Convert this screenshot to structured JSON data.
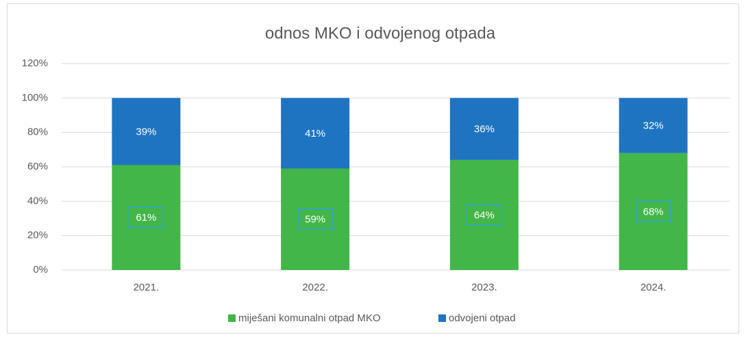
{
  "chart_data": {
    "type": "stacked_bar",
    "title": "odnos MKO i odvojenog otpada",
    "categories": [
      "2021.",
      "2022.",
      "2023.",
      "2024."
    ],
    "series": [
      {
        "name": "miješani komunalni otpad MKO",
        "color": "#43b649",
        "values": [
          61,
          59,
          64,
          68
        ],
        "value_labels": [
          "61%",
          "59%",
          "64%",
          "68%"
        ]
      },
      {
        "name": "odvojeni otpad",
        "color": "#1f74c1",
        "values": [
          39,
          41,
          36,
          32
        ],
        "value_labels": [
          "39%",
          "41%",
          "36%",
          "32%"
        ]
      }
    ],
    "ylim": [
      0,
      120
    ],
    "yticks": [
      {
        "value": 0,
        "label": "0%"
      },
      {
        "value": 20,
        "label": "20%"
      },
      {
        "value": 40,
        "label": "40%"
      },
      {
        "value": 60,
        "label": "60%"
      },
      {
        "value": 80,
        "label": "80%"
      },
      {
        "value": 100,
        "label": "100%"
      },
      {
        "value": 120,
        "label": "120%"
      }
    ],
    "grid": true,
    "legend": "bottom"
  }
}
